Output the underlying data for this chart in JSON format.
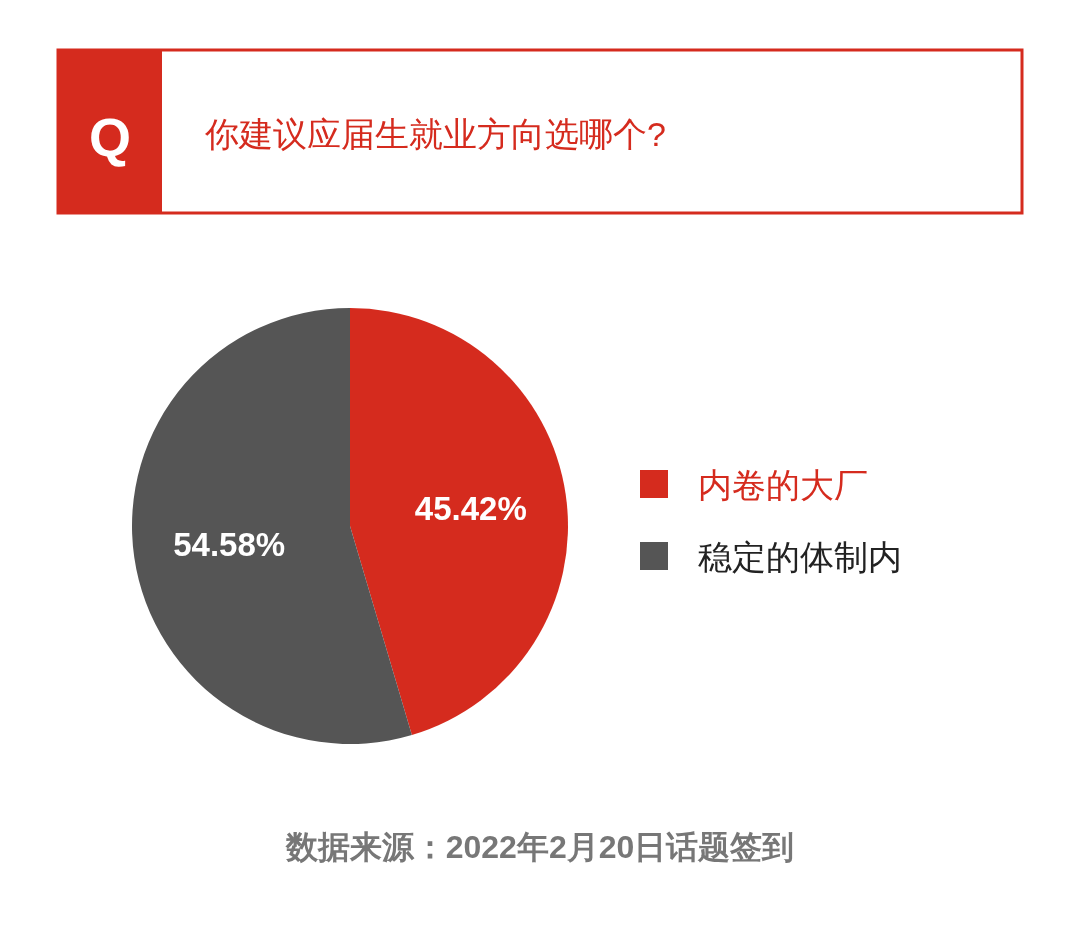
{
  "chart_data": {
    "type": "pie",
    "title": "你建议应届生就业方向选哪个?",
    "categories": [
      "内卷的大厂",
      "稳定的体制内"
    ],
    "values": [
      45.42,
      54.58
    ],
    "colors": [
      "#d52b1e",
      "#555555"
    ],
    "value_labels": [
      "45.42%",
      "54.58%"
    ],
    "legend": "right",
    "annotations": [
      "Q",
      "数据来源：2022年2月20日话题签到"
    ]
  }
}
